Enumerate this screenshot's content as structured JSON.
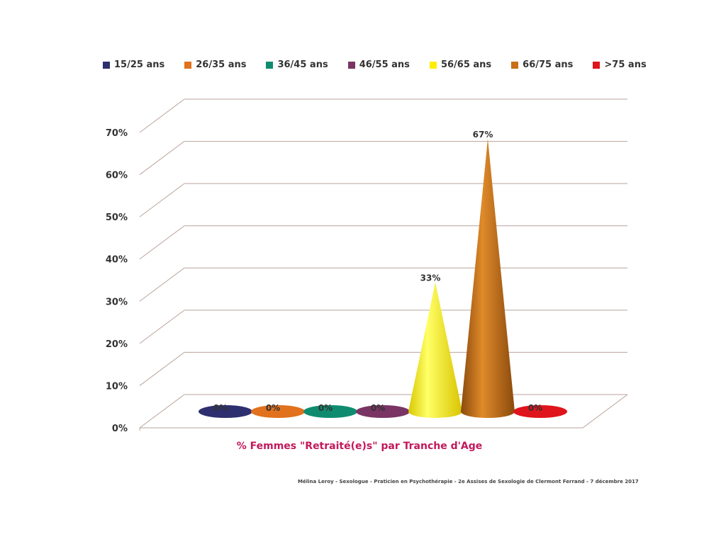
{
  "chart_data": {
    "type": "bar",
    "title": "",
    "xlabel": "% Femmes \"Retraité(e)s\" par Tranche d'Age",
    "ylabel": "",
    "ylim": [
      0,
      70
    ],
    "yticks": [
      "0%",
      "10%",
      "20%",
      "30%",
      "40%",
      "50%",
      "60%",
      "70%"
    ],
    "legend_position": "top",
    "shape": "cone",
    "grid": true,
    "categories": [
      "15/25 ans",
      "26/35 ans",
      "36/45 ans",
      "46/55 ans",
      "56/65 ans",
      "66/75 ans",
      ">75 ans"
    ],
    "values": [
      0,
      0,
      0,
      0,
      33,
      67,
      0
    ],
    "data_labels": [
      "0%",
      "0%",
      "0%",
      "0%",
      "33%",
      "67%",
      "0%"
    ],
    "colors": [
      "#2e2f6e",
      "#e1711d",
      "#0f8c6f",
      "#7a3564",
      "#ffee00",
      "#c96f17",
      "#e0141c"
    ]
  },
  "footer": "Mélina Leroy - Sexologue - Praticien en Psychothérapie - 2e Assises de Sexologie de Clermont Ferrand - 7 décembre 2017"
}
